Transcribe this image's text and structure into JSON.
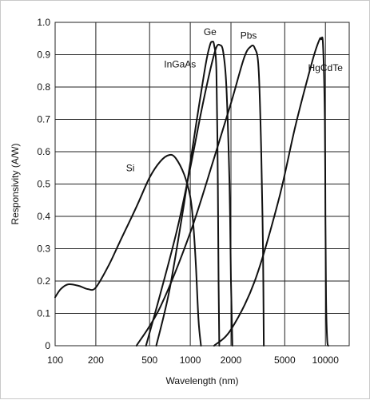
{
  "chart_data": {
    "type": "line",
    "title": "",
    "xlabel": "Wavelength (nm)",
    "ylabel": "Responsivity (A/W)",
    "x_scale": "log",
    "xlim": [
      100,
      15000
    ],
    "ylim": [
      0,
      1.0
    ],
    "grid": true,
    "legend": "none",
    "x_ticks": [
      {
        "value": 100,
        "label": "100"
      },
      {
        "value": 200,
        "label": "200"
      },
      {
        "value": 500,
        "label": "500"
      },
      {
        "value": 1000,
        "label": "1000"
      },
      {
        "value": 2000,
        "label": "2000"
      },
      {
        "value": 5000,
        "label": "5000"
      },
      {
        "value": 10000,
        "label": "10000"
      }
    ],
    "y_ticks": [
      {
        "value": 0,
        "label": "0"
      },
      {
        "value": 0.1,
        "label": "0.1"
      },
      {
        "value": 0.2,
        "label": "0.2"
      },
      {
        "value": 0.3,
        "label": "0.3"
      },
      {
        "value": 0.4,
        "label": "0.4"
      },
      {
        "value": 0.5,
        "label": "0.5"
      },
      {
        "value": 0.6,
        "label": "0.6"
      },
      {
        "value": 0.7,
        "label": "0.7"
      },
      {
        "value": 0.8,
        "label": "0.8"
      },
      {
        "value": 0.9,
        "label": "0.9"
      },
      {
        "value": 1.0,
        "label": "1.0"
      }
    ],
    "series": [
      {
        "name": "Si",
        "label_at": [
          360,
          0.54
        ],
        "points": [
          [
            100,
            0.15
          ],
          [
            110,
            0.175
          ],
          [
            125,
            0.19
          ],
          [
            150,
            0.185
          ],
          [
            175,
            0.175
          ],
          [
            200,
            0.18
          ],
          [
            250,
            0.25
          ],
          [
            300,
            0.32
          ],
          [
            400,
            0.43
          ],
          [
            500,
            0.52
          ],
          [
            600,
            0.57
          ],
          [
            700,
            0.59
          ],
          [
            780,
            0.58
          ],
          [
            900,
            0.53
          ],
          [
            1000,
            0.46
          ],
          [
            1050,
            0.38
          ],
          [
            1100,
            0.25
          ],
          [
            1150,
            0.08
          ],
          [
            1200,
            0
          ]
        ]
      },
      {
        "name": "InGaAs",
        "label_at": [
          840,
          0.86
        ],
        "points": [
          [
            560,
            0
          ],
          [
            700,
            0.17
          ],
          [
            900,
            0.44
          ],
          [
            1100,
            0.68
          ],
          [
            1300,
            0.87
          ],
          [
            1400,
            0.93
          ],
          [
            1450,
            0.94
          ],
          [
            1500,
            0.93
          ],
          [
            1560,
            0.85
          ],
          [
            1600,
            0.5
          ],
          [
            1620,
            0.2
          ],
          [
            1640,
            0
          ]
        ]
      },
      {
        "name": "Ge",
        "label_at": [
          1400,
          0.96
        ],
        "points": [
          [
            470,
            0
          ],
          [
            600,
            0.16
          ],
          [
            800,
            0.36
          ],
          [
            1000,
            0.55
          ],
          [
            1200,
            0.72
          ],
          [
            1400,
            0.85
          ],
          [
            1550,
            0.92
          ],
          [
            1650,
            0.93
          ],
          [
            1750,
            0.91
          ],
          [
            1850,
            0.8
          ],
          [
            1950,
            0.5
          ],
          [
            2000,
            0.2
          ],
          [
            2050,
            0
          ]
        ]
      },
      {
        "name": "Pbs",
        "label_at": [
          2700,
          0.95
        ],
        "points": [
          [
            400,
            0
          ],
          [
            600,
            0.12
          ],
          [
            1000,
            0.35
          ],
          [
            1500,
            0.58
          ],
          [
            2000,
            0.75
          ],
          [
            2500,
            0.89
          ],
          [
            2800,
            0.925
          ],
          [
            3000,
            0.92
          ],
          [
            3200,
            0.86
          ],
          [
            3350,
            0.6
          ],
          [
            3450,
            0.3
          ],
          [
            3500,
            0
          ]
        ]
      },
      {
        "name": "HgCdTe",
        "label_at": [
          10000,
          0.85
        ],
        "points": [
          [
            1500,
            0
          ],
          [
            2000,
            0.05
          ],
          [
            3000,
            0.2
          ],
          [
            4500,
            0.45
          ],
          [
            6000,
            0.68
          ],
          [
            8000,
            0.88
          ],
          [
            9000,
            0.945
          ],
          [
            9300,
            0.948
          ],
          [
            9600,
            0.93
          ],
          [
            9900,
            0.7
          ],
          [
            10000,
            0.4
          ],
          [
            10100,
            0.15
          ],
          [
            10300,
            0.02
          ],
          [
            10500,
            0
          ]
        ]
      }
    ]
  }
}
